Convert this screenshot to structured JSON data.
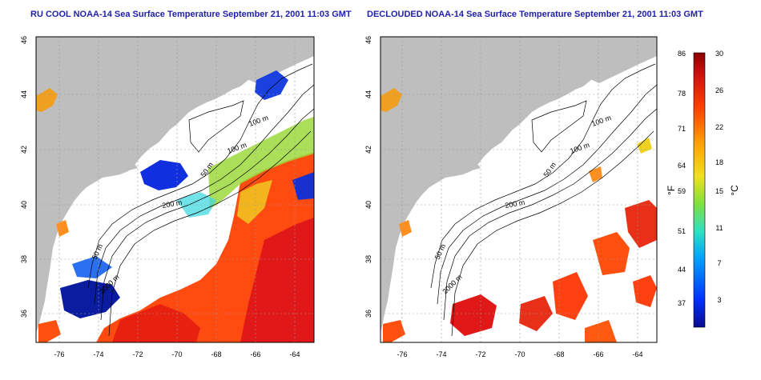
{
  "panels": [
    {
      "title": "RU COOL NOAA-14 Sea Surface Temperature September 21, 2001 11:03 GMT",
      "lon_ticks": [
        "-76",
        "-74",
        "-72",
        "-70",
        "-68",
        "-66",
        "-64"
      ],
      "lat_ticks": [
        "36",
        "38",
        "40",
        "42",
        "44",
        "46"
      ],
      "contour_labels": [
        "100 m",
        "100 m",
        "50 m",
        "200 m",
        "50 m",
        "2000 m"
      ]
    },
    {
      "title": "DECLOUDED NOAA-14 Sea Surface Temperature September 21, 2001 11:03 GMT",
      "lon_ticks": [
        "-76",
        "-74",
        "-72",
        "-70",
        "-68",
        "-66",
        "-64"
      ],
      "lat_ticks": [
        "36",
        "38",
        "40",
        "42",
        "44",
        "46"
      ],
      "contour_labels": [
        "100 m",
        "100 m",
        "50 m",
        "200 m",
        "50 m",
        "2000 m"
      ]
    }
  ],
  "colorbar": {
    "f_ticks": [
      "86",
      "78",
      "71",
      "64",
      "59",
      "51",
      "44",
      "37"
    ],
    "c_ticks": [
      "30",
      "26",
      "22",
      "18",
      "15",
      "11",
      "7",
      "3"
    ],
    "f_label": "°F",
    "c_label": "°C",
    "colors": [
      "#0a0a8c",
      "#0030ff",
      "#00a0ff",
      "#30e0c0",
      "#80e040",
      "#f0e020",
      "#ffa000",
      "#ff4000",
      "#d01010",
      "#8a0000"
    ]
  },
  "map_colors": {
    "land": "#bebebe",
    "cloud": "#ffffff",
    "coast": "#000000",
    "grid": "#9a9a9a"
  }
}
